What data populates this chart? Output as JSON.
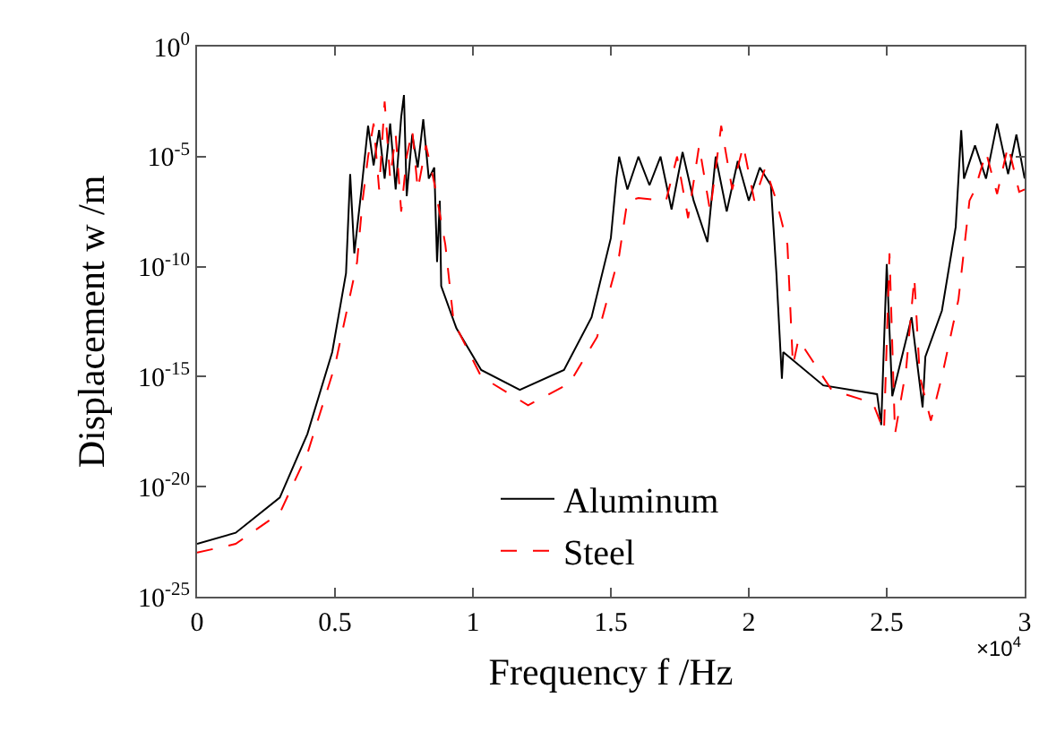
{
  "chart_data": {
    "type": "line",
    "xlabel": "Frequency f /Hz",
    "ylabel": "Displacement w /m",
    "annotations": [
      "×10$^{4}$"
    ],
    "log": "y",
    "grid": false,
    "legend": "bottom",
    "marker": "none",
    "xlim": [
      0,
      3
    ],
    "xticks": [
      0,
      0.5,
      1,
      1.5,
      2,
      2.5,
      3
    ],
    "ylim": [
      1e-25,
      1
    ],
    "yticks": [
      {
        "value": 1,
        "label": "10$^{0}$"
      },
      {
        "value": 1e-05,
        "label": "10$^{-5}$"
      },
      {
        "value": 1e-10,
        "label": "10$^{-10}$"
      },
      {
        "value": 1e-15,
        "label": "10$^{-15}$"
      },
      {
        "value": 1e-20,
        "label": "10$^{-20}$"
      },
      {
        "value": 1e-25,
        "label": "10$^{-25}$"
      }
    ],
    "series": [
      {
        "name": "Aluminum",
        "color": "#000000",
        "line_style": "solid",
        "x": [
          0,
          0.14,
          0.3,
          0.4,
          0.49,
          0.54,
          0.555,
          0.57,
          0.595,
          0.62,
          0.64,
          0.66,
          0.68,
          0.7,
          0.72,
          0.74,
          0.75,
          0.76,
          0.78,
          0.8,
          0.82,
          0.84,
          0.86,
          0.87,
          0.88,
          0.885,
          0.94,
          1.03,
          1.17,
          1.33,
          1.43,
          1.5,
          1.52,
          1.53,
          1.56,
          1.6,
          1.64,
          1.68,
          1.72,
          1.76,
          1.8,
          1.85,
          1.88,
          1.92,
          1.96,
          2.0,
          2.04,
          2.08,
          2.1,
          2.12,
          2.125,
          2.27,
          2.465,
          2.48,
          2.5,
          2.52,
          2.59,
          2.63,
          2.64,
          2.7,
          2.75,
          2.77,
          2.78,
          2.82,
          2.86,
          2.9,
          2.94,
          2.97,
          3.0
        ],
        "values": [
          2.5e-23,
          8e-23,
          3.2e-21,
          2.5e-18,
          1.3e-14,
          5e-11,
          1.6e-06,
          4e-10,
          2.5e-07,
          0.00025,
          4e-06,
          0.00016,
          1e-06,
          0.00032,
          3.2e-07,
          0.00063,
          0.0063,
          1.6e-07,
          0.0001,
          3.2e-06,
          0.0005,
          1e-06,
          3.2e-06,
          1.6e-10,
          1e-07,
          1.3e-11,
          1.6e-13,
          2e-15,
          2.5e-16,
          2e-15,
          5e-13,
          2e-09,
          1e-06,
          1e-05,
          3.2e-07,
          1e-05,
          5e-07,
          1e-05,
          4e-08,
          1.6e-05,
          1e-07,
          1.3e-09,
          1e-05,
          3.2e-08,
          6.3e-06,
          1e-07,
          3.2e-06,
          5e-07,
          5e-11,
          8e-16,
          1.3e-14,
          4e-16,
          1.6e-16,
          6.3e-18,
          1.3e-10,
          1.3e-16,
          5e-13,
          4e-17,
          8e-15,
          1e-12,
          6.3e-09,
          0.00016,
          1e-06,
          3.2e-05,
          1e-06,
          0.00032,
          1.6e-06,
          0.0001,
          1e-06
        ]
      },
      {
        "name": "Steel",
        "color": "#ff0000",
        "line_style": "dashed",
        "x": [
          0,
          0.14,
          0.3,
          0.4,
          0.5,
          0.56,
          0.58,
          0.6,
          0.62,
          0.64,
          0.66,
          0.68,
          0.7,
          0.72,
          0.74,
          0.76,
          0.78,
          0.8,
          0.83,
          0.86,
          0.9,
          0.93,
          1.03,
          1.2,
          1.35,
          1.45,
          1.53,
          1.56,
          1.6,
          1.7,
          1.74,
          1.78,
          1.82,
          1.86,
          1.9,
          1.94,
          1.98,
          2.02,
          2.06,
          2.1,
          2.14,
          2.16,
          2.18,
          2.3,
          2.45,
          2.49,
          2.51,
          2.53,
          2.57,
          2.6,
          2.62,
          2.66,
          2.7,
          2.76,
          2.8,
          2.82,
          2.86,
          2.9,
          2.94,
          2.98,
          3.0
        ],
        "values": [
          1e-23,
          2.5e-23,
          6.3e-22,
          3.2e-19,
          3.2e-15,
          1e-11,
          1.6e-10,
          1e-07,
          1e-05,
          0.00032,
          3.2e-07,
          0.0032,
          1e-06,
          0.0001,
          3.2e-08,
          1e-05,
          0.00016,
          3.2e-07,
          3.2e-05,
          6.3e-07,
          1e-09,
          3.2e-13,
          1e-15,
          5e-17,
          5e-16,
          6.3e-14,
          3.2e-10,
          1e-07,
          1.3e-07,
          1e-07,
          1e-05,
          1.6e-08,
          3.2e-05,
          3.2e-08,
          0.00025,
          3.2e-07,
          3.2e-05,
          1e-07,
          3.2e-06,
          1e-07,
          1e-09,
          3.2e-15,
          5e-14,
          2.5e-16,
          6.3e-17,
          3.2e-18,
          4e-10,
          2.5e-18,
          2e-15,
          3.2e-11,
          1e-15,
          1e-17,
          1e-15,
          3.2e-12,
          1e-07,
          3.2e-07,
          1.6e-05,
          2e-07,
          3.2e-05,
          2.5e-07,
          3.2e-07
        ]
      }
    ]
  }
}
